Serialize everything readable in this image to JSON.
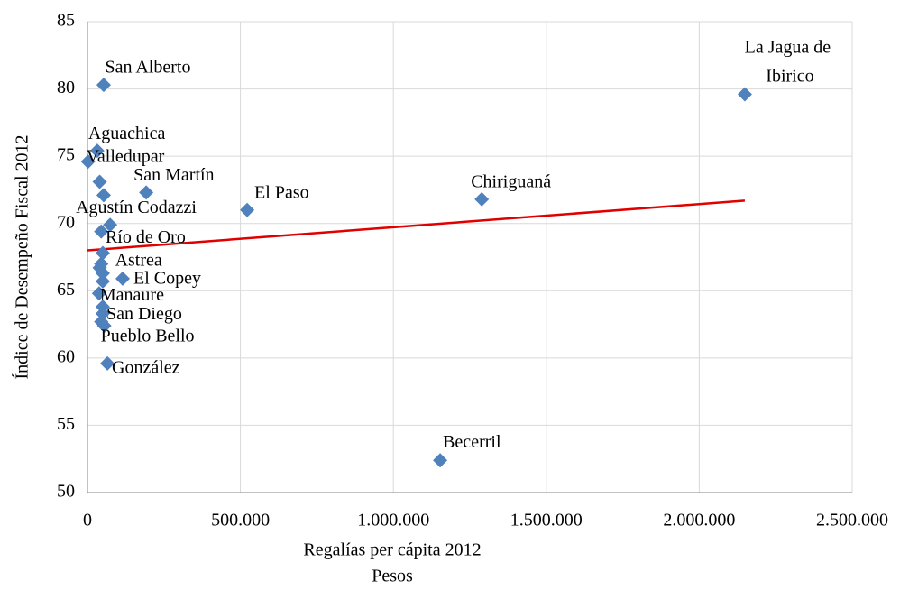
{
  "chart_data": {
    "type": "scatter",
    "xlabel": "Regalías per cápita 2012",
    "xunit": "Pesos",
    "ylabel": "Índice de Desempeño Fiscal 2012",
    "xlim": [
      0,
      2500000
    ],
    "ylim": [
      50,
      85
    ],
    "xticks": [
      0,
      {
        "value": 500000,
        "label": "500.000"
      },
      {
        "value": 1000000,
        "label": "1.000.000"
      },
      {
        "value": 1500000,
        "label": "1.500.000"
      },
      {
        "value": 2000000,
        "label": "2.000.000"
      },
      {
        "value": 2500000,
        "label": "2.500.000"
      }
    ],
    "yticks": [
      50,
      55,
      60,
      65,
      70,
      75,
      80,
      85
    ],
    "grid": true,
    "series": [
      {
        "color": "#4f81bd",
        "x": [
          2149000,
          53000,
          32000,
          2000,
          40000,
          53000,
          192000,
          522000,
          1289000,
          74000,
          45000,
          50000,
          45000,
          40000,
          50000,
          115000,
          50000,
          38000,
          50000,
          50000,
          45000,
          55000,
          65000,
          1153000
        ],
        "values": [
          79.6,
          80.3,
          75.4,
          74.6,
          73.1,
          72.1,
          72.3,
          71.0,
          71.8,
          69.9,
          69.4,
          67.8,
          67.0,
          66.7,
          66.3,
          65.9,
          65.7,
          64.8,
          63.8,
          63.3,
          62.7,
          62.4,
          59.6,
          52.4
        ],
        "labels": [
          "La Jagua de Ibirico",
          "San Alberto",
          "Aguachica",
          "Valledupar",
          null,
          null,
          "San Martín",
          "El Paso",
          "Chiriguaná",
          "Agustín Codazzi",
          null,
          "Río de Oro",
          null,
          "Astrea",
          null,
          "El Copey",
          null,
          "Manaure",
          null,
          "San Diego",
          null,
          "Pueblo Bello",
          "González",
          "Becerril"
        ]
      }
    ],
    "trendline": {
      "color": "#e00000",
      "x": [
        0,
        2149000
      ],
      "values": [
        68.0,
        71.7
      ]
    }
  }
}
